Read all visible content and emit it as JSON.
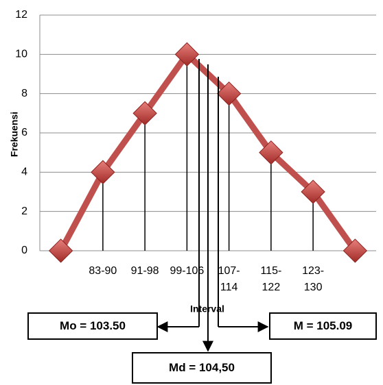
{
  "chart_data": {
    "type": "line",
    "categories": [
      null,
      "83-90",
      "91-98",
      "99-106",
      "107-114",
      "115-122",
      "123-130",
      null
    ],
    "series": [
      {
        "name": "Frekuensi",
        "color": "#c0504d",
        "values": [
          0,
          4,
          7,
          10,
          8,
          5,
          3,
          0
        ]
      }
    ],
    "ylim": [
      0,
      12
    ],
    "yticks": [
      0,
      2,
      4,
      6,
      8,
      10,
      12
    ],
    "grid": true,
    "ylabel": "Frekuensi",
    "xlabel": "Interval",
    "annotations": [
      "Mo = 103.50",
      "M = 105.09",
      "Md = 104,50"
    ]
  }
}
